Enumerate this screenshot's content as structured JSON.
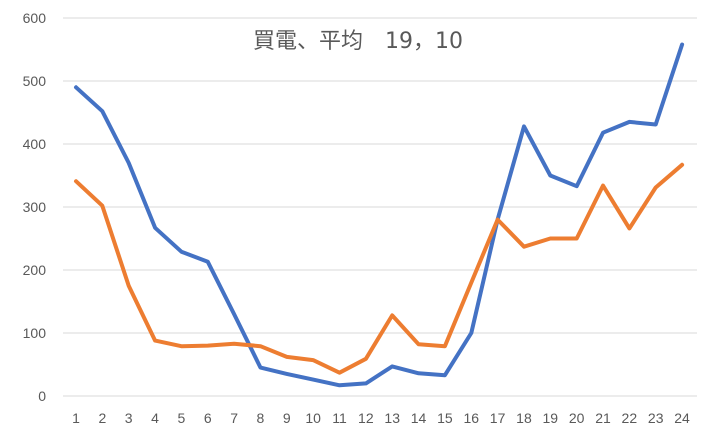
{
  "chart_data": {
    "type": "line",
    "title": "買電、平均　19，10",
    "xlabel": "",
    "ylabel": "",
    "x": [
      1,
      2,
      3,
      4,
      5,
      6,
      7,
      8,
      9,
      10,
      11,
      12,
      13,
      14,
      15,
      16,
      17,
      18,
      19,
      20,
      21,
      22,
      23,
      24
    ],
    "ylim": [
      0,
      600
    ],
    "yticks": [
      0,
      100,
      200,
      300,
      400,
      500,
      600
    ],
    "grid": true,
    "legend": "none",
    "series": [
      {
        "color": "#4472c4",
        "values": [
          490,
          452,
          370,
          267,
          229,
          213,
          130,
          45,
          35,
          26,
          17,
          20,
          47,
          36,
          33,
          100,
          280,
          428,
          350,
          333,
          418,
          435,
          431,
          558
        ]
      },
      {
        "color": "#ed7d31",
        "values": [
          341,
          302,
          175,
          88,
          79,
          80,
          83,
          79,
          62,
          57,
          37,
          59,
          128,
          82,
          79,
          180,
          280,
          237,
          250,
          250,
          334,
          266,
          331,
          367
        ]
      }
    ]
  }
}
